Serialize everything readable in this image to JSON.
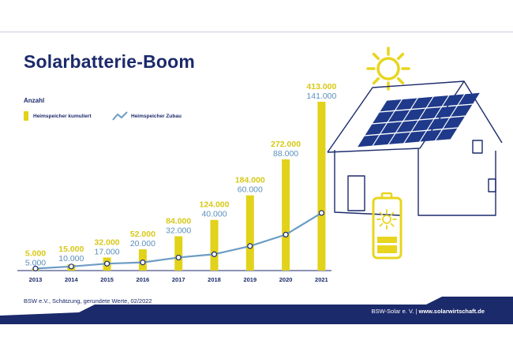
{
  "title": "Solarbatterie-Boom",
  "legend": {
    "heading": "Anzahl",
    "cumulative_label": "Heimspeicher kumuliert",
    "addition_label": "Heimspeicher Zubau"
  },
  "source": "BSW e.V., Schätzung, gerundete Werte, 02/2022",
  "footer": {
    "org": "BSW-Solar e. V.",
    "separator": " | ",
    "url": "www.solarwirtschaft.de"
  },
  "colors": {
    "bar": "#e2d21a",
    "line": "#6c9cc4",
    "title": "#1b2a6b",
    "footer": "#1b2a6b",
    "house": "#1b2a6b",
    "panel": "#1f3a8a",
    "sun": "#e8d51e"
  },
  "icons": [
    "sun-icon",
    "house-icon",
    "solar-panel-icon",
    "battery-icon"
  ],
  "chart_data": {
    "type": "bar",
    "categories": [
      "2013",
      "2014",
      "2015",
      "2016",
      "2017",
      "2018",
      "2019",
      "2020",
      "2021"
    ],
    "series": [
      {
        "name": "Heimspeicher kumuliert",
        "type": "bar",
        "values": [
          5000,
          15000,
          32000,
          52000,
          84000,
          124000,
          184000,
          272000,
          413000
        ],
        "labels": [
          "5.000",
          "15.000",
          "32.000",
          "52.000",
          "84.000",
          "124.000",
          "184.000",
          "272.000",
          "413.000"
        ]
      },
      {
        "name": "Heimspeicher Zubau",
        "type": "line",
        "values": [
          5000,
          10000,
          17000,
          20000,
          32000,
          40000,
          60000,
          88000,
          141000
        ],
        "labels": [
          "5.000",
          "10.000",
          "17.000",
          "20.000",
          "32.000",
          "40.000",
          "60.000",
          "88.000",
          "141.000"
        ]
      }
    ],
    "title": "Solarbatterie-Boom",
    "ylabel": "Anzahl",
    "ylim": [
      0,
      413000
    ],
    "grid": false,
    "legend_position": "top-left"
  }
}
